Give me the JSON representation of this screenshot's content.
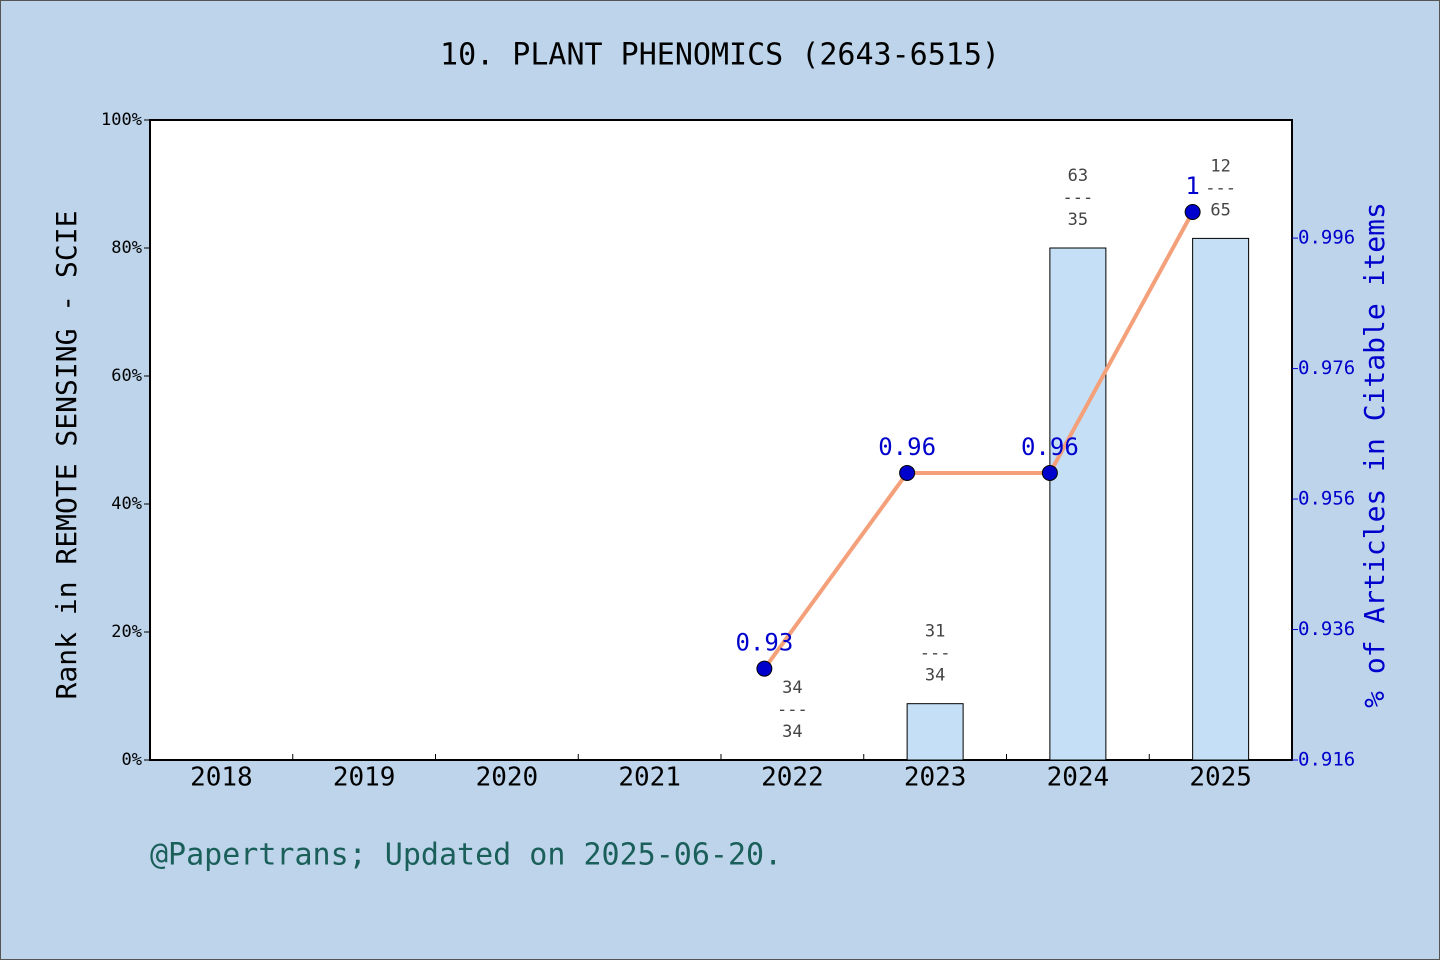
{
  "chart_data": {
    "type": "bar_line",
    "title": "10. PLANT PHENOMICS (2643-6515)",
    "y_label": "Rank in REMOTE SENSING - SCIE",
    "y2_label": "% of Articles in Citable items",
    "footnote": "@Papertrans; Updated on 2025-06-20.",
    "categories": [
      "2018",
      "2019",
      "2020",
      "2021",
      "2022",
      "2023",
      "2024",
      "2025"
    ],
    "series": [
      {
        "type": "bar",
        "color": "#c5dff6",
        "values": [
          null,
          null,
          null,
          null,
          0,
          8.8,
          80,
          81.5
        ],
        "rank_labels": [
          null,
          null,
          null,
          null,
          [
            "34",
            "---",
            "34"
          ],
          [
            "31",
            "---",
            "34"
          ],
          [
            "63",
            "---",
            "35"
          ],
          [
            "12",
            "---",
            "65"
          ]
        ]
      },
      {
        "type": "line",
        "axis": "y2",
        "color": "#f4a07a",
        "marker_color": "#0000cc",
        "label_color": "#0000cc",
        "values": [
          null,
          null,
          null,
          null,
          0.93,
          0.96,
          0.96,
          1
        ]
      }
    ],
    "ylim": [
      0,
      100
    ],
    "yticks": [
      {
        "value": 0,
        "label": "0%"
      },
      {
        "value": 20,
        "label": "20%"
      },
      {
        "value": 40,
        "label": "40%"
      },
      {
        "value": 60,
        "label": "60%"
      },
      {
        "value": 80,
        "label": "80%"
      },
      {
        "value": 100,
        "label": "100%"
      }
    ],
    "y2lim": [
      0.916,
      1.0141
    ],
    "y2ticks": [
      0.916,
      0.936,
      0.956,
      0.976,
      0.996
    ],
    "y2_color": "#0000cc"
  }
}
